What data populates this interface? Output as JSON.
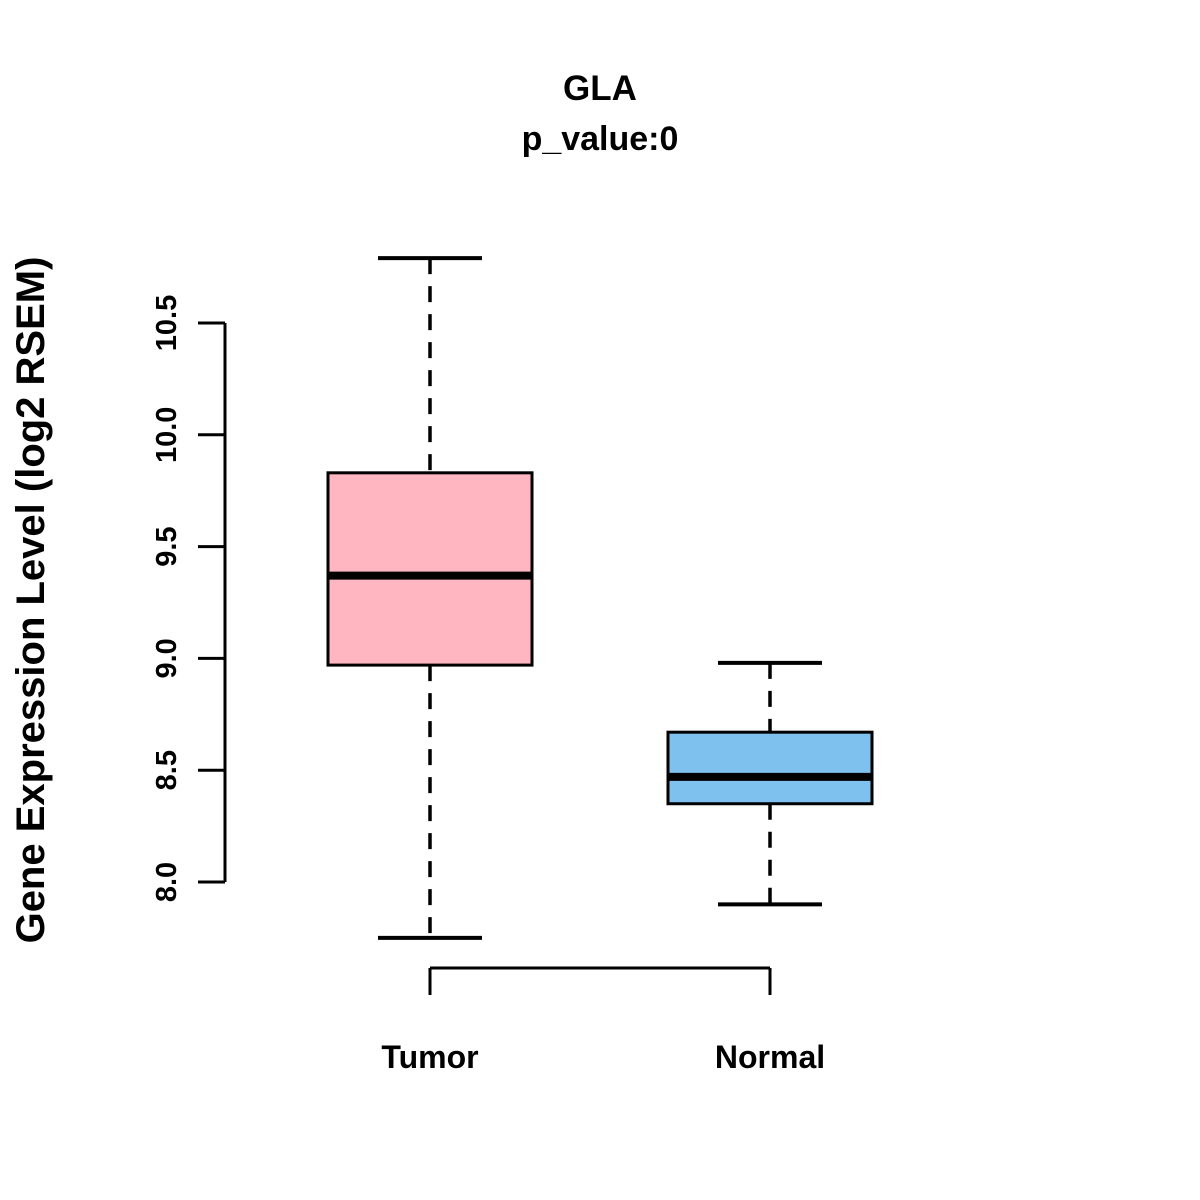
{
  "chart_data": {
    "type": "boxplot",
    "title": "GLA",
    "subtitle": "p_value:0",
    "ylabel": "Gene Expression Level (log2 RSEM)",
    "ytick_labels": [
      "8.0",
      "8.5",
      "9.0",
      "9.5",
      "10.0",
      "10.5"
    ],
    "ylim": [
      7.6,
      10.9
    ],
    "grid": false,
    "legend": "none",
    "categories": [
      "Tumor",
      "Normal"
    ],
    "series": [
      {
        "name": "Tumor",
        "whisker_low": 7.75,
        "q1": 8.97,
        "median": 9.37,
        "q3": 9.83,
        "whisker_high": 10.79,
        "fill_color": "#FFB6C1"
      },
      {
        "name": "Normal",
        "whisker_low": 7.9,
        "q1": 8.35,
        "median": 8.47,
        "q3": 8.67,
        "whisker_high": 8.98,
        "fill_color": "#7EC0EE"
      }
    ],
    "colors": {
      "box_border": "#000000",
      "median_line": "#000000",
      "axis": "#000000",
      "background": "#FFFFFF"
    }
  }
}
